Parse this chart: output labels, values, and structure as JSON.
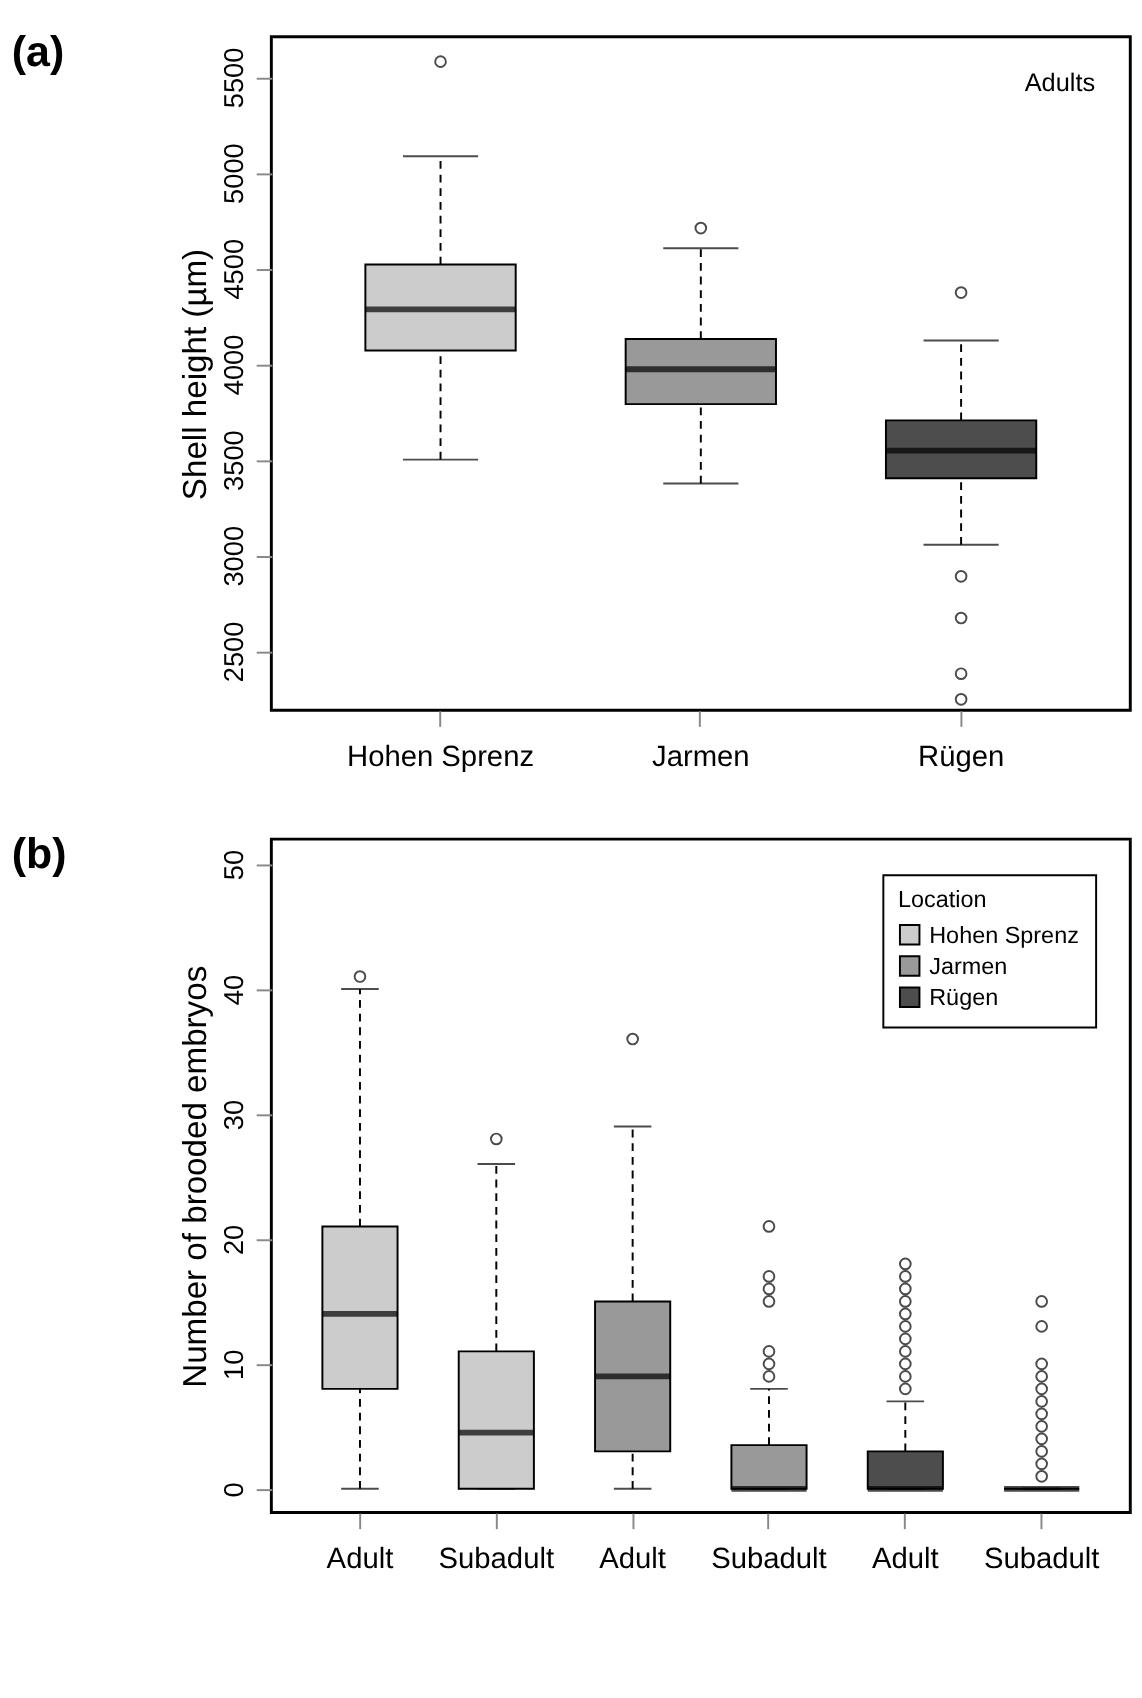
{
  "chart_data": [
    {
      "type": "box",
      "title": "(a)",
      "ylabel": "Shell height (µm)",
      "annotations": [
        "Adults"
      ],
      "categories": [
        "Hohen Sprenz",
        "Jarmen",
        "Rügen"
      ],
      "colors": [
        "#cccccc",
        "#999999",
        "#4d4d4d"
      ],
      "boxes": [
        {
          "low": 3500,
          "q1": 4070,
          "median": 4285,
          "q3": 4520,
          "high": 5085,
          "outliers": [
            5580
          ]
        },
        {
          "low": 3375,
          "q1": 3790,
          "median": 3972,
          "q3": 4130,
          "high": 4605,
          "outliers": [
            4710
          ]
        },
        {
          "low": 3055,
          "q1": 3403,
          "median": 3547,
          "q3": 3705,
          "high": 4123,
          "outliers": [
            4373,
            2890,
            2672,
            2381,
            2247
          ]
        }
      ],
      "ylim": [
        2190,
        5710
      ],
      "yticks": [
        2500,
        3000,
        3500,
        4000,
        4500,
        5000,
        5500
      ],
      "grid": false
    },
    {
      "type": "box",
      "title": "(b)",
      "ylabel": "Number of brooded embryos",
      "legend_title": "Location",
      "legend": "top right",
      "categories": [
        "Adult",
        "Subadult",
        "Adult",
        "Subadult",
        "Adult",
        "Subadult"
      ],
      "series": [
        {
          "name": "Hohen Sprenz",
          "color": "#cccccc",
          "boxes": [
            {
              "low": 0,
              "q1": 8,
              "median": 14,
              "q3": 21,
              "high": 40,
              "outliers": [
                41
              ]
            },
            {
              "low": 0,
              "q1": 0,
              "median": 4.5,
              "q3": 11,
              "high": 26,
              "outliers": [
                28
              ]
            },
            null,
            null,
            null,
            null
          ]
        },
        {
          "name": "Jarmen",
          "color": "#999999",
          "boxes": [
            null,
            null,
            {
              "low": 0,
              "q1": 3,
              "median": 9,
              "q3": 15,
              "high": 29,
              "outliers": [
                36
              ]
            },
            {
              "low": 0,
              "q1": 0,
              "median": 0,
              "q3": 3.5,
              "high": 8,
              "outliers": [
                9,
                10,
                11,
                15,
                16,
                17,
                21
              ]
            },
            null,
            null
          ]
        },
        {
          "name": "Rügen",
          "color": "#4d4d4d",
          "boxes": [
            null,
            null,
            null,
            null,
            {
              "low": 0,
              "q1": 0,
              "median": 0,
              "q3": 3,
              "high": 7,
              "outliers": [
                8,
                9,
                10,
                11,
                12,
                13,
                14,
                15,
                16,
                17,
                18
              ]
            },
            {
              "low": 0,
              "q1": 0,
              "median": 0,
              "q3": 0,
              "high": 0,
              "outliers": [
                1,
                2,
                3,
                4,
                5,
                6,
                7,
                8,
                9,
                10,
                13,
                15
              ]
            }
          ]
        }
      ],
      "ylim": [
        -1.9,
        52
      ],
      "yticks": [
        0,
        10,
        20,
        30,
        40,
        50
      ],
      "grid": false
    }
  ]
}
